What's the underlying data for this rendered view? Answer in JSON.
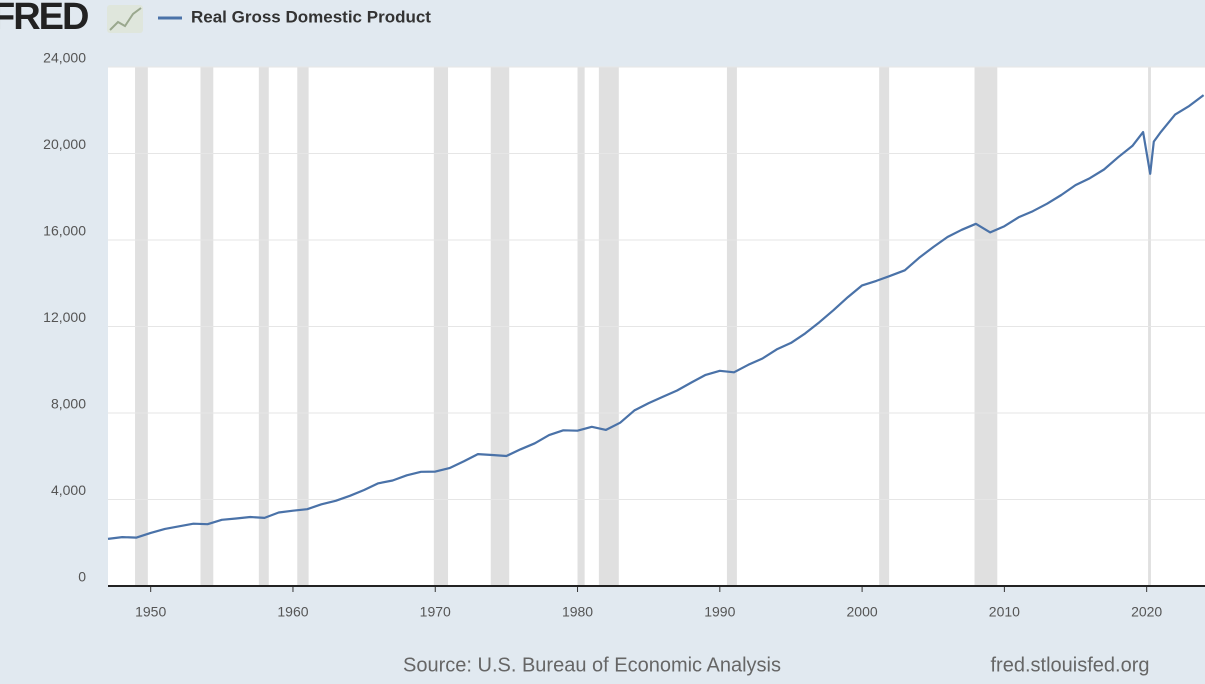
{
  "chart_data": {
    "type": "line",
    "logo": "FRED",
    "source": "Source: U.S. Bureau of Economic Analysis",
    "site": "fred.stlouisfed.org",
    "x": [
      1947,
      1948,
      1949,
      1950,
      1951,
      1952,
      1953,
      1954,
      1955,
      1956,
      1957,
      1958,
      1959,
      1960,
      1961,
      1962,
      1963,
      1964,
      1965,
      1966,
      1967,
      1968,
      1969,
      1970,
      1971,
      1972,
      1973,
      1974,
      1975,
      1976,
      1977,
      1978,
      1979,
      1980,
      1981,
      1982,
      1983,
      1984,
      1985,
      1986,
      1987,
      1988,
      1989,
      1990,
      1991,
      1992,
      1993,
      1994,
      1995,
      1996,
      1997,
      1998,
      1999,
      2000,
      2001,
      2002,
      2003,
      2004,
      2005,
      2006,
      2007,
      2008,
      2009,
      2010,
      2011,
      2012,
      2013,
      2014,
      2015,
      2016,
      2017,
      2018,
      2019,
      2019.75,
      2020.25,
      2020.5,
      2021,
      2022,
      2023,
      2024
    ],
    "series": [
      {
        "name": "Real Gross Domestic Product",
        "color": "#4a72a8",
        "values": [
          2180,
          2260,
          2240,
          2455,
          2640,
          2760,
          2880,
          2860,
          3060,
          3120,
          3190,
          3150,
          3400,
          3480,
          3550,
          3780,
          3940,
          4170,
          4440,
          4750,
          4880,
          5120,
          5280,
          5290,
          5450,
          5760,
          6100,
          6060,
          6010,
          6320,
          6600,
          6980,
          7200,
          7180,
          7360,
          7220,
          7550,
          8120,
          8460,
          8750,
          9040,
          9410,
          9760,
          9950,
          9880,
          10230,
          10520,
          10940,
          11240,
          11680,
          12200,
          12760,
          13360,
          13900,
          14110,
          14350,
          14600,
          15170,
          15670,
          16140,
          16470,
          16750,
          16350,
          16640,
          17050,
          17330,
          17680,
          18080,
          18540,
          18860,
          19260,
          19830,
          20350,
          20990,
          19060,
          20550,
          21000,
          21800,
          22200,
          22700
        ]
      }
    ],
    "recessions": [
      [
        1948.9,
        1949.8
      ],
      [
        1953.5,
        1954.4
      ],
      [
        1957.6,
        1958.3
      ],
      [
        1960.3,
        1961.1
      ],
      [
        1969.9,
        1970.9
      ],
      [
        1973.9,
        1975.2
      ],
      [
        1980.0,
        1980.5
      ],
      [
        1981.5,
        1982.9
      ],
      [
        1990.5,
        1991.2
      ],
      [
        2001.2,
        2001.9
      ],
      [
        2007.9,
        2009.5
      ],
      [
        2020.1,
        2020.3
      ]
    ],
    "recession_color": "#e0e0e0",
    "xlim": [
      1947,
      2024.1
    ],
    "xticks": [
      1950,
      1960,
      1970,
      1980,
      1990,
      2000,
      2010,
      2020
    ],
    "ylim": [
      0,
      24000
    ],
    "yticks": [
      0,
      {
        "value": 4000,
        "label": "4,000"
      },
      {
        "value": 8000,
        "label": "8,000"
      },
      {
        "value": 12000,
        "label": "12,000"
      },
      {
        "value": 16000,
        "label": "16,000"
      },
      {
        "value": 20000,
        "label": "20,000"
      },
      {
        "value": 24000,
        "label": "24,000"
      }
    ],
    "grid": true
  }
}
